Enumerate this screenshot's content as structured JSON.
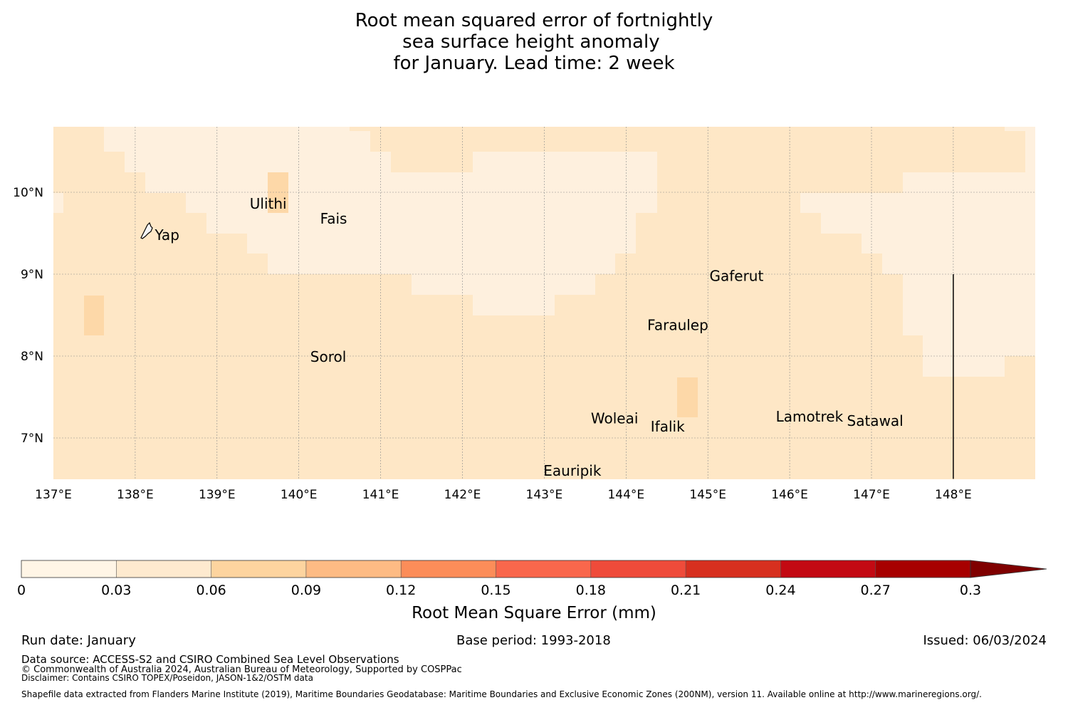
{
  "title": {
    "line1": "Root mean squared error of fortnightly",
    "line2": "sea surface height anomaly ",
    "line3": "for January. Lead time: 2 week"
  },
  "map": {
    "lon_range": [
      137,
      149
    ],
    "lat_range": [
      6.5,
      10.8
    ],
    "lon_ticks": [
      {
        "lon": 137,
        "label": "137°E"
      },
      {
        "lon": 138,
        "label": "138°E"
      },
      {
        "lon": 139,
        "label": "139°E"
      },
      {
        "lon": 140,
        "label": "140°E"
      },
      {
        "lon": 141,
        "label": "141°E"
      },
      {
        "lon": 142,
        "label": "142°E"
      },
      {
        "lon": 143,
        "label": "143°E"
      },
      {
        "lon": 144,
        "label": "144°E"
      },
      {
        "lon": 145,
        "label": "145°E"
      },
      {
        "lon": 146,
        "label": "146°E"
      },
      {
        "lon": 147,
        "label": "147°E"
      },
      {
        "lon": 148,
        "label": "148°E"
      }
    ],
    "lat_ticks": [
      {
        "lat": 10,
        "label": "10°N"
      },
      {
        "lat": 9,
        "label": "9°N"
      },
      {
        "lat": 8,
        "label": "8°N"
      },
      {
        "lat": 7,
        "label": "7°N"
      }
    ],
    "islands": [
      {
        "name": "Ulithi",
        "lon": 139.4,
        "lat": 9.86
      },
      {
        "name": "Fais",
        "lon": 140.26,
        "lat": 9.68
      },
      {
        "name": "Yap",
        "lon": 138.24,
        "lat": 9.48
      },
      {
        "name": "Gaferut",
        "lon": 145.02,
        "lat": 8.98
      },
      {
        "name": "Faraulep",
        "lon": 144.26,
        "lat": 8.38
      },
      {
        "name": "Sorol",
        "lon": 140.14,
        "lat": 7.99
      },
      {
        "name": "Woleai",
        "lon": 143.57,
        "lat": 7.24
      },
      {
        "name": "Ifalik",
        "lon": 144.3,
        "lat": 7.14
      },
      {
        "name": "Lamotrek",
        "lon": 145.83,
        "lat": 7.26
      },
      {
        "name": "Satawal",
        "lon": 146.7,
        "lat": 7.21
      },
      {
        "name": "Eauripik",
        "lon": 142.99,
        "lat": 6.6
      }
    ],
    "boundary_line": {
      "lon": 148,
      "lat_top": 9.0,
      "lat_bottom": 6.5
    }
  },
  "colorbar": {
    "label": "Root Mean Square Error (mm)",
    "ticks": [
      "0",
      "0.03",
      "0.06",
      "0.09",
      "0.12",
      "0.15",
      "0.18",
      "0.21",
      "0.24",
      "0.27",
      "0.3"
    ],
    "colors": [
      "#fff5e6",
      "#feeacf",
      "#fdd49f",
      "#fdbb84",
      "#fc8d59",
      "#f9674c",
      "#ef4b3a",
      "#d7301f",
      "#c30a13",
      "#a70000",
      "#7f0000"
    ]
  },
  "footer": {
    "run_date": "Run date: January",
    "base_period": "Base period: 1993-2018",
    "issued": "Issued: 06/03/2024",
    "data_source": "Data source: ACCESS-S2 and CSIRO Combined Sea Level Observations",
    "copyright": "© Commonwealth of Australia 2024, Australian Bureau of Meteorology, Supported by COSPPac",
    "disclaimer": "Disclaimer: Contains CSIRO TOPEX/Poseidon, JASON-1&2/OSTM data",
    "shapefile": "Shapefile data extracted from Flanders Marine Institute (2019), Maritime Boundaries Geodatabase: Maritime Boundaries and Exclusive Economic Zones (200NM), version 11. Available online at http://www.marineregions.org/."
  }
}
